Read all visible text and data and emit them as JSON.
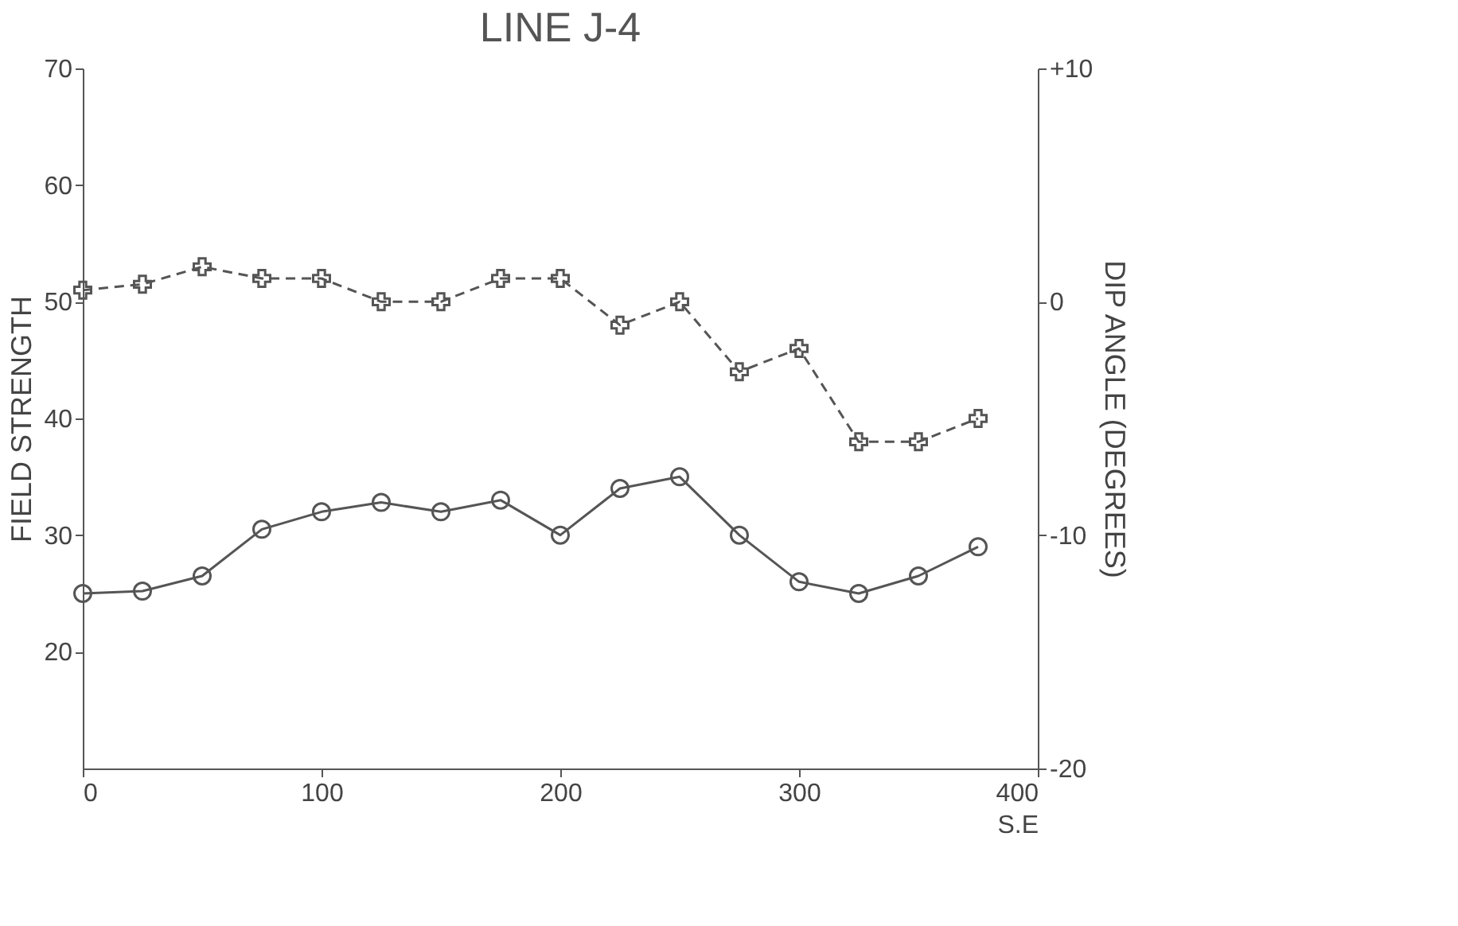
{
  "chart_data": {
    "type": "line",
    "title": "LINE J-4",
    "xlabel": "S.E",
    "ylabel": "FIELD STRENGTH",
    "y2label": "DIP ANGLE (DEGREES)",
    "x": [
      0,
      25,
      50,
      75,
      100,
      125,
      150,
      175,
      200,
      225,
      250,
      275,
      300,
      325,
      350,
      375
    ],
    "series": [
      {
        "color": "#555555",
        "marker": "circle",
        "line_style": "solid",
        "values": [
          25,
          25.2,
          26.5,
          30.5,
          32,
          32.8,
          32,
          33,
          30,
          34,
          35,
          30,
          26,
          25,
          26.5,
          29
        ]
      },
      {
        "color": "#555555",
        "marker": "cross",
        "line_style": "dashed",
        "axis": "y2",
        "values": [
          0.5,
          0.75,
          1.5,
          1,
          1,
          0,
          0,
          1,
          1,
          -1,
          0,
          -3,
          -2,
          -6,
          -6,
          -5
        ]
      }
    ],
    "xlim": [
      0,
      400
    ],
    "xticks": [
      0,
      100,
      200,
      300,
      400
    ],
    "ylim": [
      10,
      70
    ],
    "yticks": [
      20,
      30,
      40,
      50,
      60,
      70
    ],
    "y2lim": [
      -20,
      10
    ],
    "y2ticks": [
      {
        "value": -20,
        "label": "-20"
      },
      {
        "value": -10,
        "label": "-10"
      },
      0,
      {
        "value": 10,
        "label": "+10"
      }
    ],
    "grid": false
  }
}
